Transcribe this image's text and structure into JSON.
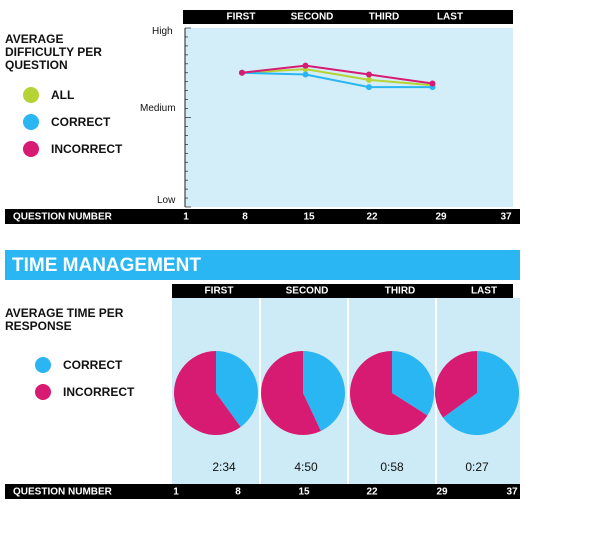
{
  "colors": {
    "all": "#b5d334",
    "correct": "#29b6f2",
    "incorrect": "#d81b72",
    "panel": "#d3eef8",
    "banner": "#29b6f2"
  },
  "difficulty": {
    "title_line1": "AVERAGE",
    "title_line2": "DIFFICULTY PER",
    "title_line3": "QUESTION",
    "quarters": [
      "FIRST",
      "SECOND",
      "THIRD",
      "LAST"
    ],
    "legend": [
      {
        "label": "ALL",
        "color": "#b5d334"
      },
      {
        "label": "CORRECT",
        "color": "#29b6f2"
      },
      {
        "label": "INCORRECT",
        "color": "#d81b72"
      }
    ],
    "y_labels": {
      "high": "High",
      "medium": "Medium",
      "low": "Low"
    },
    "axis_label": "QUESTION NUMBER",
    "ticks": [
      "1",
      "8",
      "15",
      "22",
      "29",
      "37"
    ]
  },
  "time": {
    "banner": "TIME MANAGEMENT",
    "title_line1": "AVERAGE TIME PER",
    "title_line2": "RESPONSE",
    "quarters": [
      "FIRST",
      "SECOND",
      "THIRD",
      "LAST"
    ],
    "legend": [
      {
        "label": "CORRECT",
        "color": "#29b6f2"
      },
      {
        "label": "INCORRECT",
        "color": "#d81b72"
      }
    ],
    "times": [
      "2:34",
      "4:50",
      "0:58",
      "0:27"
    ],
    "axis_label": "QUESTION NUMBER",
    "ticks": [
      "1",
      "8",
      "15",
      "22",
      "29",
      "37"
    ]
  },
  "chart_data": [
    {
      "type": "line",
      "title": "AVERAGE DIFFICULTY PER QUESTION",
      "x": [
        8,
        15,
        22,
        29
      ],
      "xlabel": "QUESTION NUMBER",
      "ylabel": "",
      "y_scale_labels": [
        "Low",
        "Medium",
        "High"
      ],
      "ylim": [
        0,
        1
      ],
      "series": [
        {
          "name": "ALL",
          "color": "#b5d334",
          "values": [
            0.75,
            0.77,
            0.71,
            0.68
          ]
        },
        {
          "name": "CORRECT",
          "color": "#29b6f2",
          "values": [
            0.75,
            0.74,
            0.67,
            0.67
          ]
        },
        {
          "name": "INCORRECT",
          "color": "#d81b72",
          "values": [
            0.75,
            0.79,
            0.74,
            0.69
          ]
        }
      ]
    },
    {
      "type": "pie",
      "title": "AVERAGE TIME PER RESPONSE",
      "categories": [
        "FIRST",
        "SECOND",
        "THIRD",
        "LAST"
      ],
      "series": [
        {
          "name": "CORRECT",
          "color": "#29b6f2",
          "values": [
            0.4,
            0.43,
            0.34,
            0.65
          ]
        },
        {
          "name": "INCORRECT",
          "color": "#d81b72",
          "values": [
            0.6,
            0.57,
            0.66,
            0.35
          ]
        }
      ],
      "labels": [
        "2:34",
        "4:50",
        "0:58",
        "0:27"
      ]
    }
  ]
}
